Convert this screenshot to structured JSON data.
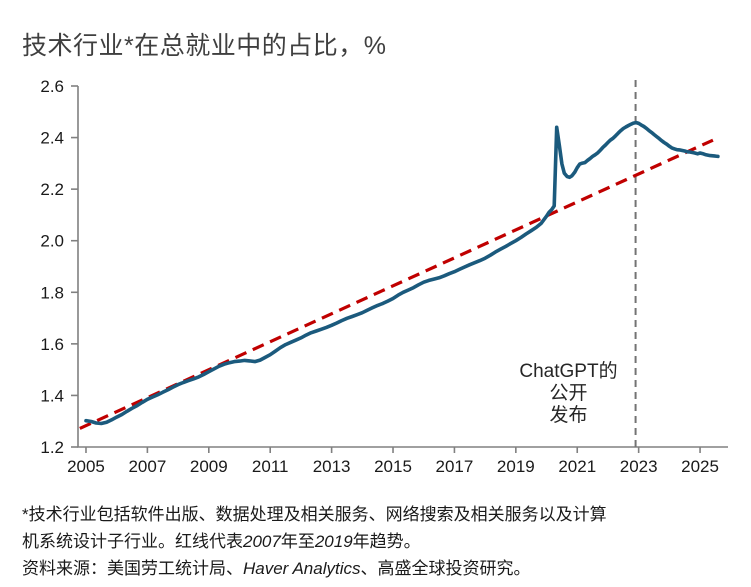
{
  "title": "技术行业*在总就业中的占比，%",
  "annotation": {
    "lines": [
      "ChatGPT的",
      "公开",
      "发布"
    ]
  },
  "footnote": {
    "line1": "*技术行业包括软件出版、数据处理及相关服务、网络搜索及相关服务以及计算",
    "line2_segments": [
      {
        "text": "机系统设计子行业。红线代表"
      },
      {
        "text": "2007",
        "italic": true
      },
      {
        "text": "年至"
      },
      {
        "text": "2019",
        "italic": true
      },
      {
        "text": "年趋势。"
      }
    ],
    "source_segments": [
      {
        "text": "资料来源：美国劳工统计局、"
      },
      {
        "text": "Haver Analytics",
        "italic": true
      },
      {
        "text": "、高盛全球投资研究。"
      }
    ]
  },
  "colors": {
    "series_blue": "#1B5A7D",
    "trend_red": "#C00000",
    "event_gray": "#737373",
    "axis_gray": "#808080",
    "tick_label": "#1a1a1a"
  },
  "chart_data": {
    "type": "line",
    "title": "技术行业*在总就业中的占比，%",
    "xlabel": "",
    "ylabel": "%",
    "xlim": [
      2004.74,
      2025.91
    ],
    "ylim": [
      1.2,
      2.6
    ],
    "grid": false,
    "legend_position": "none",
    "y_ticks": {
      "values": [
        1.2,
        1.4,
        1.6,
        1.8,
        2.0,
        2.2,
        2.4,
        2.6
      ],
      "labels": [
        "1.2",
        "1.4",
        "1.6",
        "1.8",
        "2.0",
        "2.2",
        "2.4",
        "2.6"
      ]
    },
    "x_ticks": {
      "values": [
        2005,
        2007,
        2009,
        2011,
        2013,
        2015,
        2017,
        2019,
        2021,
        2023,
        2025
      ],
      "labels": [
        "2005",
        "2007",
        "2009",
        "2011",
        "2013",
        "2015",
        "2017",
        "2019",
        "2021",
        "2023",
        "2025"
      ]
    },
    "series": [
      {
        "name": "技术行业在总就业中的占比",
        "color": "#1B5A7D",
        "points": [
          [
            2005.0,
            1.302
          ],
          [
            2005.17,
            1.299
          ],
          [
            2005.33,
            1.293
          ],
          [
            2005.5,
            1.291
          ],
          [
            2005.67,
            1.296
          ],
          [
            2005.83,
            1.305
          ],
          [
            2006.0,
            1.316
          ],
          [
            2006.17,
            1.326
          ],
          [
            2006.33,
            1.338
          ],
          [
            2006.5,
            1.35
          ],
          [
            2006.67,
            1.361
          ],
          [
            2006.83,
            1.373
          ],
          [
            2007.0,
            1.385
          ],
          [
            2007.17,
            1.394
          ],
          [
            2007.33,
            1.402
          ],
          [
            2007.5,
            1.412
          ],
          [
            2007.67,
            1.422
          ],
          [
            2007.83,
            1.432
          ],
          [
            2008.0,
            1.442
          ],
          [
            2008.17,
            1.45
          ],
          [
            2008.33,
            1.457
          ],
          [
            2008.5,
            1.464
          ],
          [
            2008.67,
            1.472
          ],
          [
            2008.83,
            1.481
          ],
          [
            2009.0,
            1.492
          ],
          [
            2009.17,
            1.503
          ],
          [
            2009.33,
            1.513
          ],
          [
            2009.5,
            1.521
          ],
          [
            2009.67,
            1.527
          ],
          [
            2009.83,
            1.531
          ],
          [
            2010.0,
            1.533
          ],
          [
            2010.17,
            1.536
          ],
          [
            2010.33,
            1.534
          ],
          [
            2010.5,
            1.531
          ],
          [
            2010.67,
            1.537
          ],
          [
            2010.83,
            1.547
          ],
          [
            2011.0,
            1.558
          ],
          [
            2011.17,
            1.572
          ],
          [
            2011.33,
            1.585
          ],
          [
            2011.5,
            1.597
          ],
          [
            2011.67,
            1.606
          ],
          [
            2011.83,
            1.614
          ],
          [
            2012.0,
            1.623
          ],
          [
            2012.17,
            1.634
          ],
          [
            2012.33,
            1.643
          ],
          [
            2012.5,
            1.65
          ],
          [
            2012.67,
            1.657
          ],
          [
            2012.83,
            1.664
          ],
          [
            2013.0,
            1.672
          ],
          [
            2013.17,
            1.681
          ],
          [
            2013.33,
            1.69
          ],
          [
            2013.5,
            1.699
          ],
          [
            2013.67,
            1.706
          ],
          [
            2013.83,
            1.713
          ],
          [
            2014.0,
            1.721
          ],
          [
            2014.17,
            1.731
          ],
          [
            2014.33,
            1.74
          ],
          [
            2014.5,
            1.749
          ],
          [
            2014.67,
            1.757
          ],
          [
            2014.83,
            1.766
          ],
          [
            2015.0,
            1.776
          ],
          [
            2015.17,
            1.789
          ],
          [
            2015.33,
            1.8
          ],
          [
            2015.5,
            1.809
          ],
          [
            2015.67,
            1.818
          ],
          [
            2015.83,
            1.829
          ],
          [
            2016.0,
            1.839
          ],
          [
            2016.17,
            1.846
          ],
          [
            2016.33,
            1.851
          ],
          [
            2016.5,
            1.856
          ],
          [
            2016.67,
            1.864
          ],
          [
            2016.83,
            1.872
          ],
          [
            2017.0,
            1.88
          ],
          [
            2017.17,
            1.889
          ],
          [
            2017.33,
            1.898
          ],
          [
            2017.5,
            1.907
          ],
          [
            2017.67,
            1.915
          ],
          [
            2017.83,
            1.923
          ],
          [
            2018.0,
            1.932
          ],
          [
            2018.17,
            1.944
          ],
          [
            2018.33,
            1.956
          ],
          [
            2018.5,
            1.967
          ],
          [
            2018.67,
            1.978
          ],
          [
            2018.83,
            1.989
          ],
          [
            2019.0,
            2.0
          ],
          [
            2019.17,
            2.013
          ],
          [
            2019.33,
            2.026
          ],
          [
            2019.5,
            2.039
          ],
          [
            2019.67,
            2.052
          ],
          [
            2019.83,
            2.068
          ],
          [
            2020.0,
            2.095
          ],
          [
            2020.08,
            2.11
          ],
          [
            2020.17,
            2.121
          ],
          [
            2020.25,
            2.135
          ],
          [
            2020.33,
            2.44
          ],
          [
            2020.42,
            2.368
          ],
          [
            2020.5,
            2.298
          ],
          [
            2020.58,
            2.262
          ],
          [
            2020.67,
            2.249
          ],
          [
            2020.75,
            2.246
          ],
          [
            2020.83,
            2.252
          ],
          [
            2020.92,
            2.266
          ],
          [
            2021.0,
            2.283
          ],
          [
            2021.08,
            2.297
          ],
          [
            2021.17,
            2.301
          ],
          [
            2021.25,
            2.303
          ],
          [
            2021.33,
            2.311
          ],
          [
            2021.42,
            2.319
          ],
          [
            2021.5,
            2.327
          ],
          [
            2021.58,
            2.333
          ],
          [
            2021.67,
            2.341
          ],
          [
            2021.75,
            2.351
          ],
          [
            2021.83,
            2.361
          ],
          [
            2021.92,
            2.371
          ],
          [
            2022.0,
            2.381
          ],
          [
            2022.08,
            2.39
          ],
          [
            2022.17,
            2.398
          ],
          [
            2022.25,
            2.407
          ],
          [
            2022.33,
            2.417
          ],
          [
            2022.42,
            2.427
          ],
          [
            2022.5,
            2.435
          ],
          [
            2022.58,
            2.441
          ],
          [
            2022.67,
            2.447
          ],
          [
            2022.75,
            2.452
          ],
          [
            2022.83,
            2.456
          ],
          [
            2022.92,
            2.458
          ],
          [
            2023.0,
            2.455
          ],
          [
            2023.08,
            2.449
          ],
          [
            2023.17,
            2.443
          ],
          [
            2023.25,
            2.436
          ],
          [
            2023.33,
            2.428
          ],
          [
            2023.42,
            2.42
          ],
          [
            2023.5,
            2.412
          ],
          [
            2023.58,
            2.404
          ],
          [
            2023.67,
            2.396
          ],
          [
            2023.75,
            2.388
          ],
          [
            2023.83,
            2.381
          ],
          [
            2023.92,
            2.374
          ],
          [
            2024.0,
            2.366
          ],
          [
            2024.08,
            2.36
          ],
          [
            2024.17,
            2.356
          ],
          [
            2024.25,
            2.353
          ],
          [
            2024.33,
            2.352
          ],
          [
            2024.42,
            2.35
          ],
          [
            2024.5,
            2.348
          ],
          [
            2024.58,
            2.345
          ],
          [
            2024.67,
            2.344
          ],
          [
            2024.75,
            2.342
          ],
          [
            2024.83,
            2.34
          ],
          [
            2024.92,
            2.337
          ],
          [
            2025.0,
            2.34
          ],
          [
            2025.08,
            2.338
          ],
          [
            2025.17,
            2.334
          ],
          [
            2025.25,
            2.332
          ],
          [
            2025.33,
            2.33
          ],
          [
            2025.5,
            2.328
          ],
          [
            2025.58,
            2.327
          ]
        ]
      }
    ],
    "trend_line": {
      "name": "2007年至2019年趋势",
      "color": "#C00000",
      "style": "dashed",
      "start": [
        2004.8,
        1.272
      ],
      "end": [
        2025.42,
        2.39
      ]
    },
    "event_line": {
      "label": "ChatGPT的公开发布",
      "year": 2022.9,
      "color": "#737373",
      "style": "dashed"
    }
  }
}
